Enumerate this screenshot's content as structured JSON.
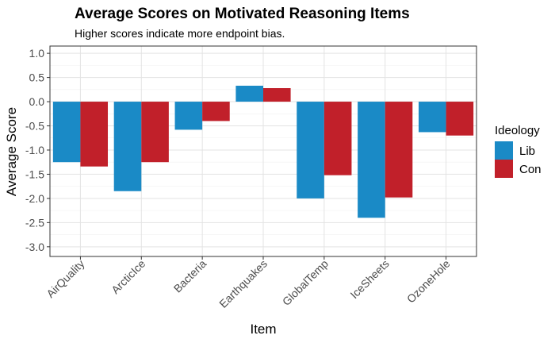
{
  "chart_data": {
    "type": "bar",
    "title": "Average Scores on Motivated Reasoning Items",
    "subtitle": "Higher scores indicate more endpoint bias.",
    "xlabel": "Item",
    "ylabel": "Average Score",
    "categories": [
      "AirQuality",
      "ArcticIce",
      "Bacteria",
      "Earthquakes",
      "GlobalTemp",
      "IceSheets",
      "OzoneHole"
    ],
    "series": [
      {
        "name": "Lib",
        "color": "#1a8ac6",
        "values": [
          -1.25,
          -1.85,
          -0.58,
          0.33,
          -2.0,
          -2.4,
          -0.63
        ]
      },
      {
        "name": "Con",
        "color": "#c1202a",
        "values": [
          -1.34,
          -1.25,
          -0.4,
          0.28,
          -1.52,
          -1.98,
          -0.7
        ]
      }
    ],
    "ylim": [
      -3.2,
      1.15
    ],
    "yticks": [
      1.0,
      0.5,
      0.0,
      -0.5,
      -1.0,
      -1.5,
      -2.0,
      -2.5,
      -3.0
    ],
    "ytick_labels": [
      "1.0",
      "0.5",
      "0.0",
      "-0.5",
      "-1.0",
      "-1.5",
      "-2.0",
      "-2.5",
      "-3.0"
    ],
    "legend": {
      "title": "Ideology",
      "position": "right"
    },
    "grid": true
  }
}
